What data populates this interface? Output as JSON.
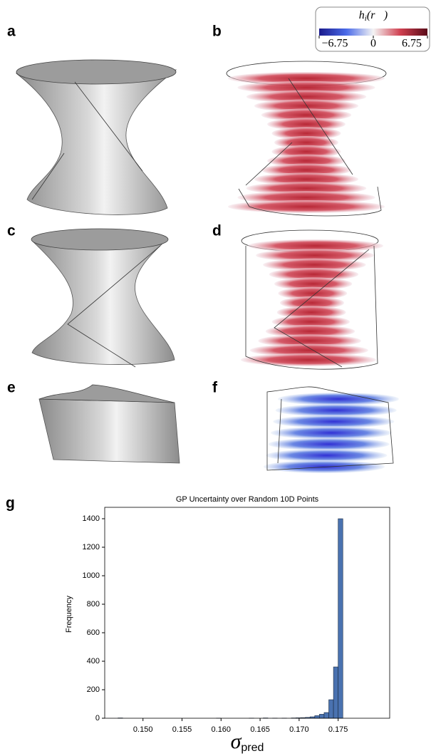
{
  "panel_labels": [
    "a",
    "b",
    "c",
    "d",
    "e",
    "f",
    "g"
  ],
  "colorbar": {
    "title": "h",
    "title_sub": "i",
    "title_rest": "(r⃗)",
    "lim": [
      -6.75,
      6.75
    ],
    "ticks": [
      {
        "value": -6.75,
        "label": "−6.75"
      },
      0,
      6.75
    ]
  },
  "chart_data": {
    "type": "histogram",
    "title": "GP Uncertainty over Random 10D Points",
    "x_label": "σ",
    "x_label_sub": "pred",
    "y_label": "Frequency",
    "color": "#4a72b0",
    "bins": [
      0.1468,
      0.1474,
      0.148,
      0.1486,
      0.1492,
      0.1498,
      0.1504,
      0.151,
      0.1516,
      0.1522,
      0.1528,
      0.1534,
      0.154,
      0.1546,
      0.1552,
      0.1558,
      0.1564,
      0.157,
      0.1576,
      0.1582,
      0.1588,
      0.1594,
      0.16,
      0.1606,
      0.1612,
      0.1618,
      0.1624,
      0.163,
      0.1636,
      0.1642,
      0.1648,
      0.1654,
      0.166,
      0.1666,
      0.1672,
      0.1678,
      0.1684,
      0.169,
      0.1696,
      0.1702,
      0.1708,
      0.1714,
      0.172,
      0.1726,
      0.1732,
      0.1738,
      0.1744,
      0.175,
      0.1756
    ],
    "values": [
      2,
      0,
      0,
      0,
      0,
      0,
      0,
      0,
      0,
      0,
      0,
      0,
      0,
      0,
      0,
      0,
      0,
      0,
      0,
      0,
      0,
      1,
      0,
      0,
      0,
      0,
      0,
      0,
      1,
      0,
      0,
      2,
      0,
      1,
      0,
      1,
      0,
      2,
      3,
      4,
      6,
      10,
      18,
      28,
      40,
      130,
      360,
      1400
    ],
    "xlim": [
      0.1451,
      0.1816
    ],
    "ylim": [
      0,
      1480
    ],
    "xticks": [
      {
        "value": 0.15,
        "label": "0.150"
      },
      {
        "value": 0.155,
        "label": "0.155"
      },
      {
        "value": 0.16,
        "label": "0.160"
      },
      {
        "value": 0.165,
        "label": "0.165"
      },
      {
        "value": 0.17,
        "label": "0.170"
      },
      {
        "value": 0.175,
        "label": "0.175"
      }
    ],
    "yticks": [
      0,
      200,
      400,
      600,
      800,
      1000,
      1200,
      1400
    ]
  }
}
